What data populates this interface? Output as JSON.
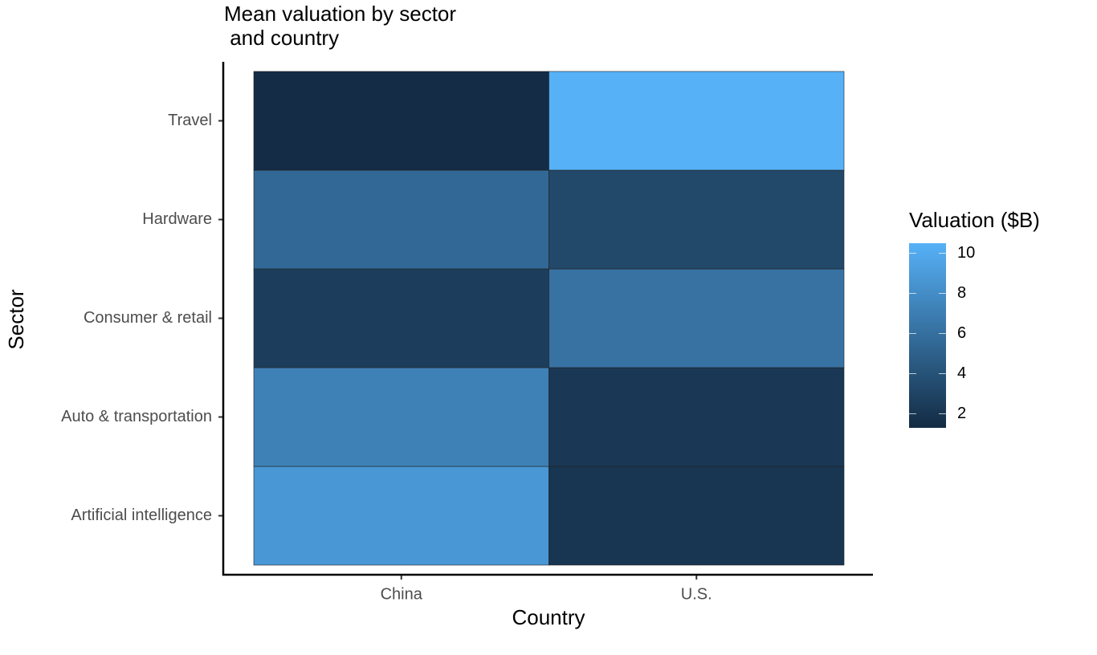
{
  "chart_data": {
    "type": "heatmap",
    "title": "Mean valuation by sector\n and country",
    "x_label": "Country",
    "y_label": "Sector",
    "x": [
      "China",
      "U.S."
    ],
    "y": [
      "Artificial intelligence",
      "Auto & transportation",
      "Consumer & retail",
      "Hardware",
      "Travel"
    ],
    "values": [
      [
        8.7,
        2.0
      ],
      [
        7.2,
        2.2
      ],
      [
        2.6,
        6.2
      ],
      [
        5.5,
        3.3
      ],
      [
        1.4,
        10.5
      ]
    ],
    "colorbar": {
      "title": "Valuation ($B)",
      "lim": [
        1.3,
        10.5
      ],
      "ticks": [
        2,
        4,
        6,
        8,
        10
      ],
      "colors": [
        "#132B43",
        "#56B1F7"
      ]
    }
  }
}
